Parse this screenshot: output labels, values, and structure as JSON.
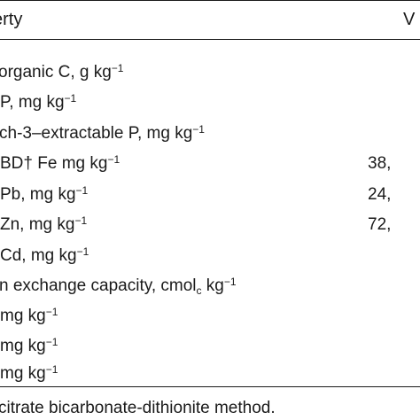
{
  "header": {
    "property": "erty",
    "value": "V"
  },
  "rows": [
    {
      "property": "organic C, g kg",
      "sup": "−1",
      "value": ""
    },
    {
      "property": "P, mg kg",
      "sup": "−1",
      "value": ""
    },
    {
      "property": "ch-3–extractable P, mg kg",
      "sup": "−1",
      "value": ""
    },
    {
      "property": "BD† Fe mg kg",
      "sup": "−1",
      "value": "38,"
    },
    {
      "property": "Pb, mg kg",
      "sup": "−1",
      "value": "24,"
    },
    {
      "property": "Zn, mg kg",
      "sup": "−1",
      "value": "72,"
    },
    {
      "property": "Cd, mg kg",
      "sup": "−1",
      "value": ""
    },
    {
      "property": "n exchange capacity, cmol",
      "sub": "c",
      "after_sub": " kg",
      "sup": "−1",
      "value": ""
    },
    {
      "property": " mg kg",
      "sup": "−1",
      "value": ""
    },
    {
      "property": "mg kg",
      "sup": "−1",
      "value": ""
    },
    {
      "property": "mg kg",
      "sup": "−1",
      "value": ""
    }
  ],
  "footnote": "citrate bicarbonate-dithionite method."
}
